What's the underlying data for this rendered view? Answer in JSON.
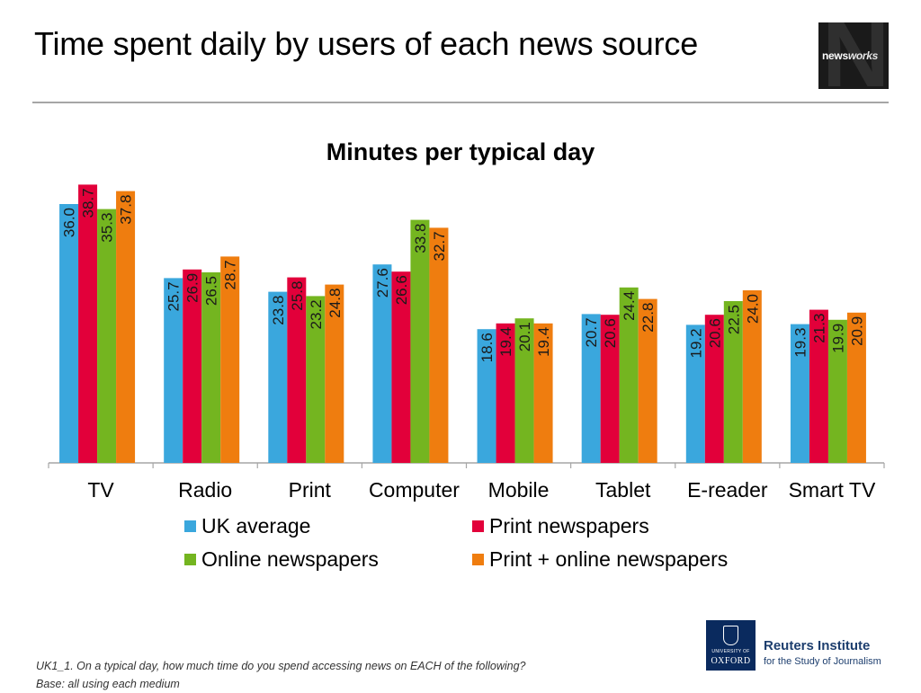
{
  "page": {
    "title": "Time spent daily by users of each news source",
    "footnote_question": "UK1_1. On a typical day, how much time do you spend accessing news on EACH of the following?",
    "footnote_base": "Base: all using each medium"
  },
  "logos": {
    "newsworks_part1": "news",
    "newsworks_part2": "works",
    "oxford_university": "UNIVERSITY OF",
    "oxford_name": "OXFORD",
    "reuters_name": "Reuters Institute",
    "reuters_sub": "for the Study of Journalism"
  },
  "chart_data": {
    "type": "bar",
    "title": "Minutes per typical day",
    "xlabel": "",
    "ylabel": "",
    "ylim": [
      0,
      40
    ],
    "grid": false,
    "legend_position": "bottom",
    "categories": [
      "TV",
      "Radio",
      "Print",
      "Computer",
      "Mobile",
      "Tablet",
      "E-reader",
      "Smart TV"
    ],
    "series": [
      {
        "name": "UK average",
        "color": "#3aa7dd",
        "values": [
          36.0,
          25.7,
          23.8,
          27.6,
          18.6,
          20.7,
          19.2,
          19.3
        ]
      },
      {
        "name": "Print newspapers",
        "color": "#e2003a",
        "values": [
          38.7,
          26.9,
          25.8,
          26.6,
          19.4,
          20.6,
          20.6,
          21.3
        ]
      },
      {
        "name": "Online newspapers",
        "color": "#74b520",
        "values": [
          35.3,
          26.5,
          23.2,
          33.8,
          20.1,
          24.4,
          22.5,
          19.9
        ]
      },
      {
        "name": "Print + online newspapers",
        "color": "#ef7d0f",
        "values": [
          37.8,
          28.7,
          24.8,
          32.7,
          19.4,
          22.8,
          24.0,
          20.9
        ]
      }
    ]
  }
}
